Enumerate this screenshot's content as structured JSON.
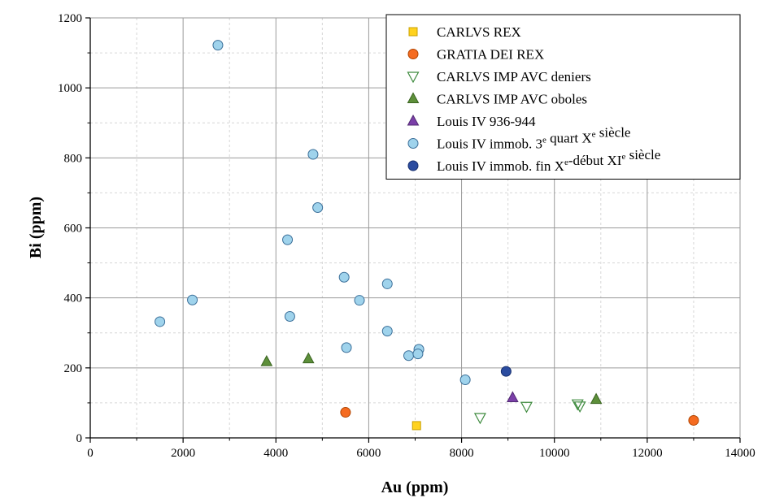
{
  "chart_data": {
    "type": "scatter",
    "title": "",
    "xlabel": "Au (ppm)",
    "ylabel": "Bi (ppm)",
    "xlim": [
      0,
      14000
    ],
    "ylim": [
      0,
      1200
    ],
    "x_ticks": [
      0,
      2000,
      4000,
      6000,
      8000,
      10000,
      12000,
      14000
    ],
    "y_ticks": [
      0,
      200,
      400,
      600,
      800,
      1000,
      1200
    ],
    "grid": true,
    "legend_position": "top-right",
    "series": [
      {
        "name": "CARLVS REX",
        "marker": "square",
        "fill": "#ffd21e",
        "stroke": "#c9a000",
        "points": [
          [
            7030,
            35
          ]
        ]
      },
      {
        "name": "GRATIA DEI REX",
        "marker": "circle",
        "fill": "#f56b20",
        "stroke": "#b04400",
        "points": [
          [
            5500,
            73
          ],
          [
            13000,
            50
          ]
        ]
      },
      {
        "name": "CARLVS IMP AVC deniers",
        "marker": "triangle-down-open",
        "fill": "none",
        "stroke": "#3d8a3d",
        "points": [
          [
            8400,
            58
          ],
          [
            9400,
            90
          ],
          [
            10500,
            97
          ],
          [
            10550,
            91
          ]
        ]
      },
      {
        "name": "CARLVS IMP AVC oboles",
        "marker": "triangle-up",
        "fill": "#5d8f3a",
        "stroke": "#3a6420",
        "points": [
          [
            3800,
            218
          ],
          [
            4700,
            226
          ],
          [
            10900,
            110
          ]
        ]
      },
      {
        "name": "Louis IV 936-944",
        "name_parts": [],
        "marker": "triangle-up",
        "fill": "#7b3fa8",
        "stroke": "#512a73",
        "points": [
          [
            9100,
            115
          ]
        ]
      },
      {
        "name": "Louis IV immob. 3e quart Xe siècle",
        "name_parts": [
          {
            "text": "Louis IV immob. 3",
            "sup": false
          },
          {
            "text": "e",
            "sup": true
          },
          {
            "text": " quart X",
            "sup": false
          },
          {
            "text": "e",
            "sup": true
          },
          {
            "text": " siècle",
            "sup": false
          }
        ],
        "marker": "circle",
        "fill": "#9fd3ec",
        "stroke": "#3b6f99",
        "points": [
          [
            2750,
            1122
          ],
          [
            4800,
            810
          ],
          [
            4900,
            658
          ],
          [
            4250,
            566
          ],
          [
            5470,
            459
          ],
          [
            6400,
            440
          ],
          [
            2200,
            394
          ],
          [
            5800,
            393
          ],
          [
            1500,
            332
          ],
          [
            4300,
            347
          ],
          [
            6400,
            305
          ],
          [
            5520,
            258
          ],
          [
            7080,
            253
          ],
          [
            6860,
            235
          ],
          [
            7060,
            240
          ],
          [
            8080,
            166
          ]
        ]
      },
      {
        "name": "Louis IV immob. fin Xe-début XIe siècle",
        "name_parts": [
          {
            "text": "Louis IV immob. fin X",
            "sup": false
          },
          {
            "text": "e",
            "sup": true
          },
          {
            "text": "-début XI",
            "sup": false
          },
          {
            "text": "e",
            "sup": true
          },
          {
            "text": " siècle",
            "sup": false
          }
        ],
        "marker": "circle",
        "fill": "#2b4ca0",
        "stroke": "#172f6e",
        "points": [
          [
            8960,
            190
          ]
        ]
      }
    ]
  }
}
